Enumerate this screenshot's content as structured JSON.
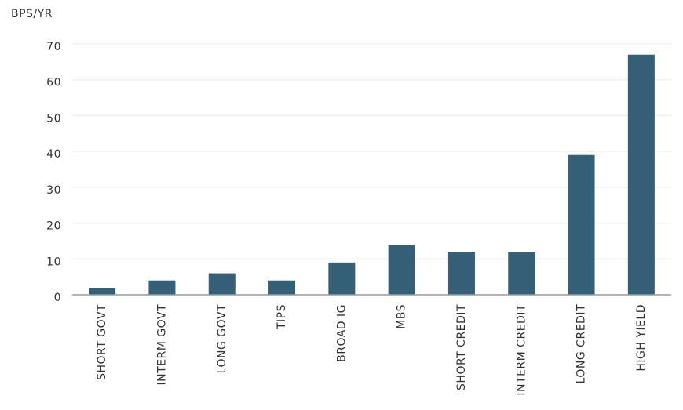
{
  "chart_data": {
    "type": "bar",
    "y_label": "BPS/YR",
    "categories": [
      "SHORT GOVT",
      "INTERM GOVT",
      "LONG GOVT",
      "TIPS",
      "BROAD IG",
      "MBS",
      "SHORT CREDIT",
      "INTERM CREDIT",
      "LONG CREDIT",
      "HIGH YIELD"
    ],
    "values": [
      1.8,
      4,
      6,
      4,
      9,
      14,
      12,
      12,
      39,
      67
    ],
    "color": "#365f78",
    "ylim": [
      0,
      70
    ],
    "yticks": [
      0,
      10,
      20,
      30,
      40,
      50,
      60,
      70
    ],
    "grid": true
  }
}
